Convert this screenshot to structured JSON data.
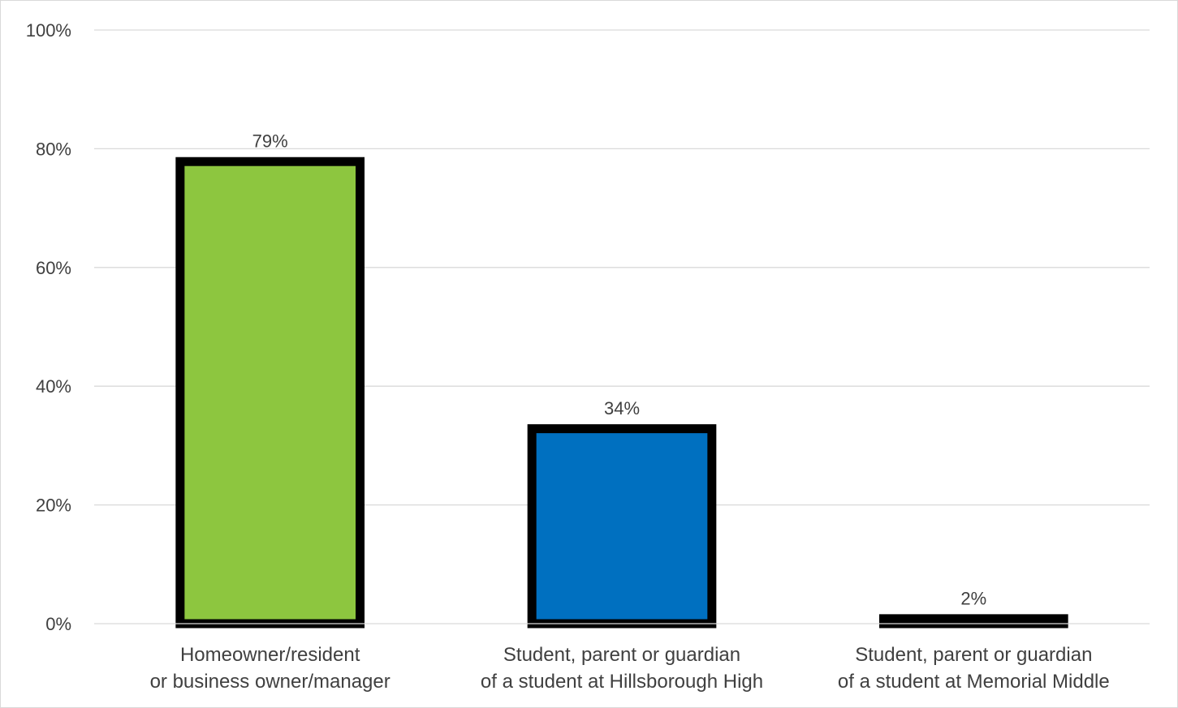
{
  "chart_data": {
    "type": "bar",
    "title": "",
    "xlabel": "",
    "ylabel": "",
    "ylim": [
      0,
      100
    ],
    "y_ticks": [
      0,
      20,
      40,
      60,
      80,
      100
    ],
    "y_tick_labels": [
      "0%",
      "20%",
      "40%",
      "60%",
      "80%",
      "100%"
    ],
    "grid": true,
    "legend": "none",
    "categories": [
      [
        "Homeowner/resident",
        "or business owner/manager"
      ],
      [
        "Student, parent or guardian",
        "of a student at Hillsborough High"
      ],
      [
        "Student, parent or guardian",
        "of a student at Memorial Middle"
      ]
    ],
    "values": [
      79,
      34,
      2
    ],
    "data_labels": [
      "79%",
      "34%",
      "2%"
    ],
    "bar_colors": [
      "#8dc63f",
      "#0070c0",
      "#ffc000"
    ],
    "bar_border_color": "#000000"
  }
}
